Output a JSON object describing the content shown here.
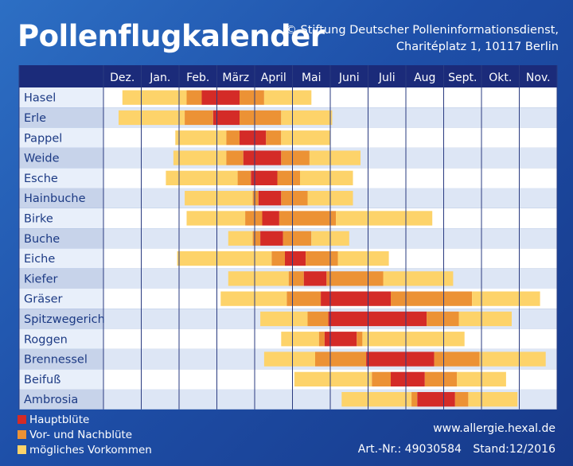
{
  "header": {
    "title": "Pollenflugkalender",
    "copyright_line1": "© Stiftung Deutscher Polleninformationsdienst,",
    "copyright_line2": "Charitéplatz 1, 10117 Berlin"
  },
  "footer": {
    "website": "www.allergie.hexal.de",
    "article": "Art.-Nr.: 49030584",
    "stand": "Stand:12/2016"
  },
  "colors": {
    "haupt": "#d42b27",
    "vornach": "#ec9235",
    "moeglich": "#fdd36a",
    "header_bg": "#1b2b7a",
    "label_text": "#1c3a84"
  },
  "chart_data": {
    "type": "gantt",
    "months": [
      "Dez.",
      "Jan.",
      "Feb.",
      "März",
      "April",
      "Mai",
      "Juni",
      "Juli",
      "Aug",
      "Sept.",
      "Okt.",
      "Nov."
    ],
    "legend": [
      {
        "key": "haupt",
        "label": "Hauptblüte"
      },
      {
        "key": "vornach",
        "label": "Vor- und Nachblüte"
      },
      {
        "key": "moeglich",
        "label": "mögliches Vorkommen"
      }
    ],
    "plants": [
      {
        "name": "Hasel",
        "segments": [
          [
            0.5,
            2.2,
            "moeglich"
          ],
          [
            2.2,
            2.6,
            "vornach"
          ],
          [
            2.6,
            3.6,
            "haupt"
          ],
          [
            3.6,
            4.25,
            "vornach"
          ],
          [
            4.25,
            5.5,
            "moeglich"
          ]
        ]
      },
      {
        "name": "Erle",
        "segments": [
          [
            0.4,
            2.15,
            "moeglich"
          ],
          [
            2.15,
            2.9,
            "vornach"
          ],
          [
            2.9,
            3.6,
            "haupt"
          ],
          [
            3.6,
            4.7,
            "vornach"
          ],
          [
            4.7,
            6.05,
            "moeglich"
          ]
        ]
      },
      {
        "name": "Pappel",
        "segments": [
          [
            1.9,
            3.25,
            "moeglich"
          ],
          [
            3.25,
            3.6,
            "vornach"
          ],
          [
            3.6,
            4.3,
            "haupt"
          ],
          [
            4.3,
            4.7,
            "vornach"
          ],
          [
            4.7,
            6.0,
            "moeglich"
          ]
        ]
      },
      {
        "name": "Weide",
        "segments": [
          [
            1.85,
            3.25,
            "moeglich"
          ],
          [
            3.25,
            3.7,
            "vornach"
          ],
          [
            3.7,
            4.7,
            "haupt"
          ],
          [
            4.7,
            5.45,
            "vornach"
          ],
          [
            5.45,
            6.8,
            "moeglich"
          ]
        ]
      },
      {
        "name": "Esche",
        "segments": [
          [
            1.65,
            3.55,
            "moeglich"
          ],
          [
            3.55,
            3.9,
            "vornach"
          ],
          [
            3.9,
            4.6,
            "haupt"
          ],
          [
            4.6,
            5.2,
            "vornach"
          ],
          [
            5.2,
            6.6,
            "moeglich"
          ]
        ]
      },
      {
        "name": "Hainbuche",
        "segments": [
          [
            2.15,
            3.95,
            "moeglich"
          ],
          [
            3.95,
            4.1,
            "vornach"
          ],
          [
            4.1,
            4.7,
            "haupt"
          ],
          [
            4.7,
            5.4,
            "vornach"
          ],
          [
            5.4,
            6.6,
            "moeglich"
          ]
        ]
      },
      {
        "name": "Birke",
        "segments": [
          [
            2.2,
            3.75,
            "moeglich"
          ],
          [
            3.75,
            4.2,
            "vornach"
          ],
          [
            4.2,
            4.65,
            "haupt"
          ],
          [
            4.65,
            6.15,
            "vornach"
          ],
          [
            6.15,
            8.7,
            "moeglich"
          ]
        ]
      },
      {
        "name": "Buche",
        "segments": [
          [
            3.3,
            3.95,
            "moeglich"
          ],
          [
            3.95,
            4.15,
            "vornach"
          ],
          [
            4.15,
            4.75,
            "haupt"
          ],
          [
            4.75,
            5.5,
            "vornach"
          ],
          [
            5.5,
            6.5,
            "moeglich"
          ]
        ]
      },
      {
        "name": "Eiche",
        "segments": [
          [
            1.95,
            4.45,
            "moeglich"
          ],
          [
            4.45,
            4.8,
            "vornach"
          ],
          [
            4.8,
            5.35,
            "haupt"
          ],
          [
            5.35,
            6.2,
            "vornach"
          ],
          [
            6.2,
            7.55,
            "moeglich"
          ]
        ]
      },
      {
        "name": "Kiefer",
        "segments": [
          [
            3.3,
            4.9,
            "moeglich"
          ],
          [
            4.9,
            5.3,
            "vornach"
          ],
          [
            5.3,
            5.9,
            "haupt"
          ],
          [
            5.9,
            7.4,
            "vornach"
          ],
          [
            7.4,
            9.25,
            "moeglich"
          ]
        ]
      },
      {
        "name": "Gräser",
        "segments": [
          [
            3.1,
            4.85,
            "moeglich"
          ],
          [
            4.85,
            5.75,
            "vornach"
          ],
          [
            5.75,
            7.6,
            "haupt"
          ],
          [
            7.6,
            9.75,
            "vornach"
          ],
          [
            9.75,
            11.55,
            "moeglich"
          ]
        ]
      },
      {
        "name": "Spitzwegerich",
        "segments": [
          [
            4.15,
            5.4,
            "moeglich"
          ],
          [
            5.4,
            5.95,
            "vornach"
          ],
          [
            5.95,
            8.55,
            "haupt"
          ],
          [
            8.55,
            9.4,
            "vornach"
          ],
          [
            9.4,
            10.8,
            "moeglich"
          ]
        ]
      },
      {
        "name": "Roggen",
        "segments": [
          [
            4.7,
            5.7,
            "moeglich"
          ],
          [
            5.7,
            5.85,
            "vornach"
          ],
          [
            5.85,
            6.7,
            "haupt"
          ],
          [
            6.7,
            6.85,
            "vornach"
          ],
          [
            6.85,
            9.55,
            "moeglich"
          ]
        ]
      },
      {
        "name": "Brennessel",
        "segments": [
          [
            4.25,
            5.6,
            "moeglich"
          ],
          [
            5.6,
            6.95,
            "vornach"
          ],
          [
            6.95,
            8.75,
            "haupt"
          ],
          [
            8.75,
            9.95,
            "vornach"
          ],
          [
            9.95,
            11.7,
            "moeglich"
          ]
        ]
      },
      {
        "name": "Beifuß",
        "segments": [
          [
            5.05,
            7.1,
            "moeglich"
          ],
          [
            7.1,
            7.6,
            "vornach"
          ],
          [
            7.6,
            8.5,
            "haupt"
          ],
          [
            8.5,
            9.35,
            "vornach"
          ],
          [
            9.35,
            10.65,
            "moeglich"
          ]
        ]
      },
      {
        "name": "Ambrosia",
        "segments": [
          [
            6.3,
            8.15,
            "moeglich"
          ],
          [
            8.15,
            8.3,
            "vornach"
          ],
          [
            8.3,
            9.3,
            "haupt"
          ],
          [
            9.3,
            9.65,
            "vornach"
          ],
          [
            9.65,
            10.95,
            "moeglich"
          ]
        ]
      }
    ]
  }
}
